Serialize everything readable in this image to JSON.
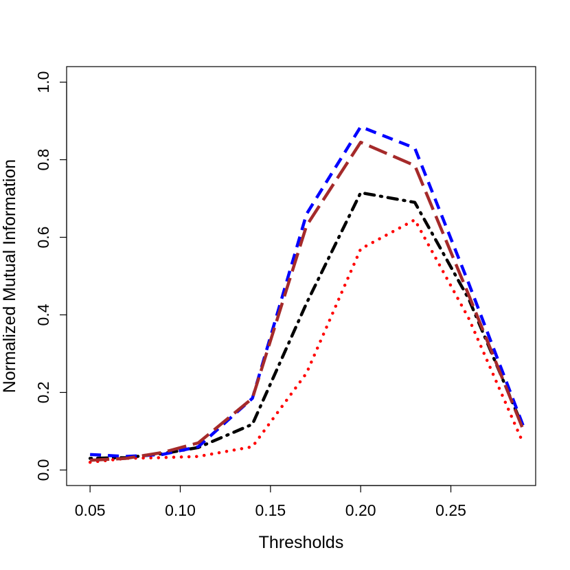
{
  "chart_data": {
    "type": "line",
    "title": "",
    "xlabel": "Thresholds",
    "ylabel": "Normalized Mutual Information",
    "xlim": [
      0.037,
      0.297
    ],
    "ylim": [
      -0.04,
      1.04
    ],
    "xticks": [
      "0.05",
      "0.10",
      "0.15",
      "0.20",
      "0.25"
    ],
    "yticks": [
      "0.0",
      "0.2",
      "0.4",
      "0.6",
      "0.8",
      "1.0"
    ],
    "grid": false,
    "legend": "none",
    "x": [
      0.05,
      0.07,
      0.09,
      0.11,
      0.14,
      0.17,
      0.2,
      0.23,
      0.26,
      0.29
    ],
    "series": [
      {
        "color": "#000000",
        "line_style": "dotdash",
        "values": [
          0.03,
          0.032,
          0.042,
          0.058,
          0.118,
          0.43,
          0.715,
          0.69,
          0.44,
          0.11
        ]
      },
      {
        "color": "#ff0000",
        "line_style": "dotted",
        "values": [
          0.02,
          0.03,
          0.032,
          0.035,
          0.06,
          0.25,
          0.57,
          0.645,
          0.39,
          0.07
        ]
      },
      {
        "color": "#0000ff",
        "line_style": "dashed",
        "values": [
          0.04,
          0.035,
          0.04,
          0.06,
          0.185,
          0.66,
          0.885,
          0.83,
          0.48,
          0.115
        ]
      },
      {
        "color": "#a52a2a",
        "line_style": "longdash",
        "values": [
          0.025,
          0.03,
          0.045,
          0.07,
          0.185,
          0.63,
          0.845,
          0.785,
          0.45,
          0.105
        ]
      }
    ]
  }
}
